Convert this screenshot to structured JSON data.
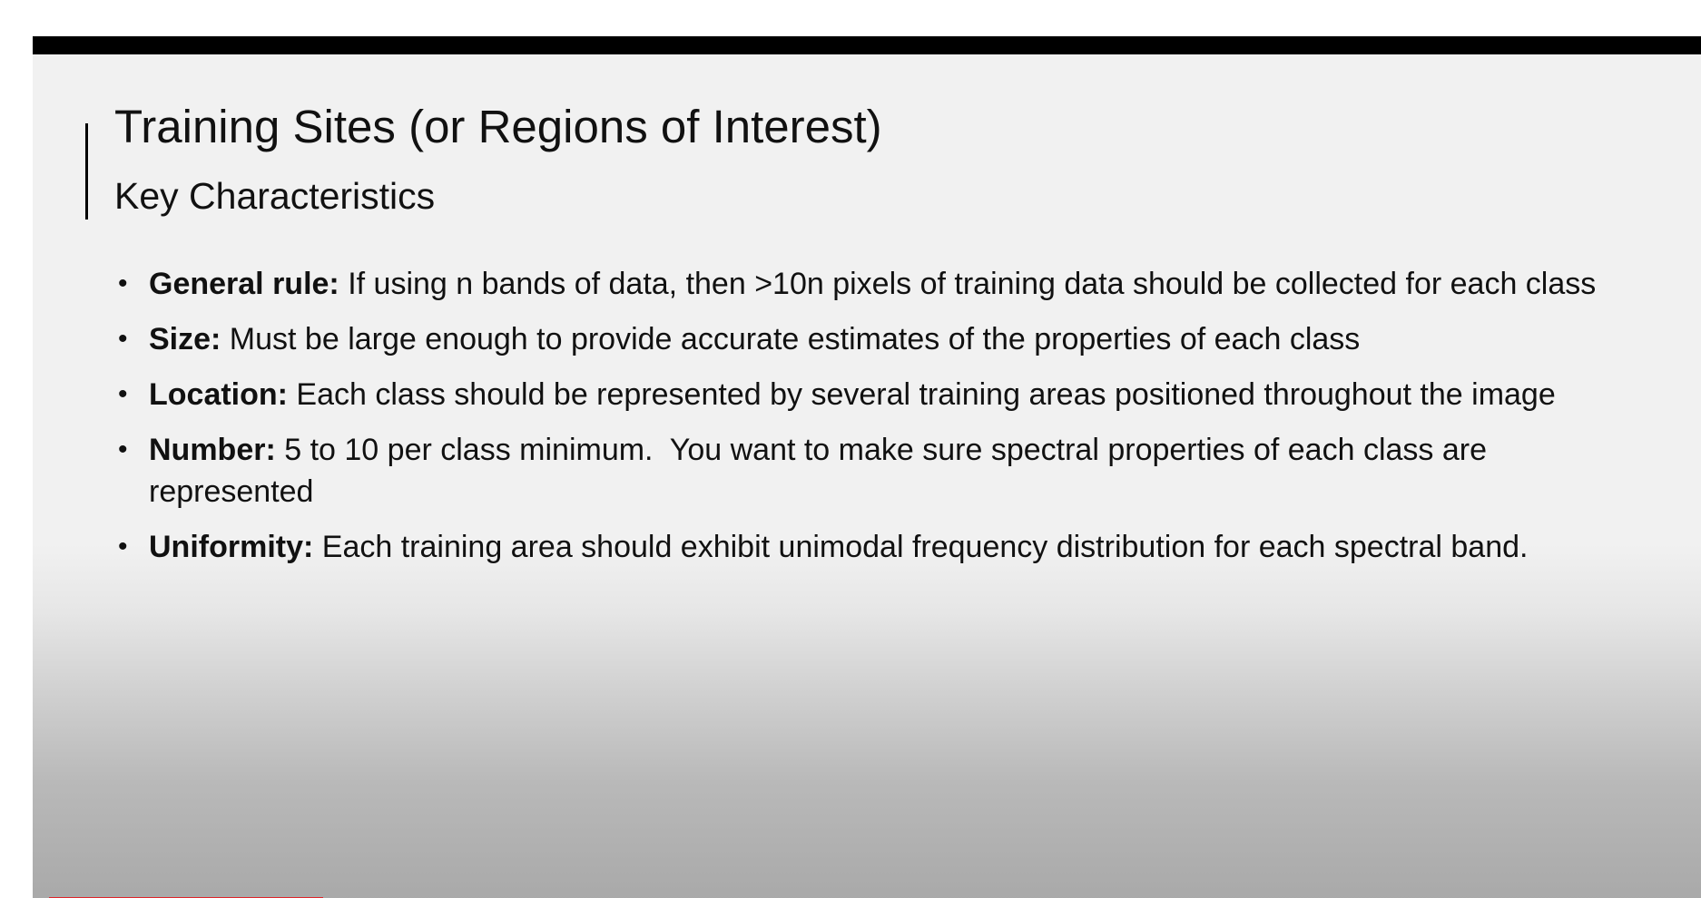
{
  "slide": {
    "title": "Training Sites (or Regions of Interest)",
    "subtitle": "Key Characteristics",
    "bullets": [
      {
        "term": "General rule:",
        "text": " If using n bands of data, then >10n pixels of training data should be collected for each class"
      },
      {
        "term": "Size:",
        "text": " Must be large enough to provide accurate estimates of the properties of each class"
      },
      {
        "term": "Location:",
        "text": " Each class should be represented by several training areas positioned throughout the image"
      },
      {
        "term": "Number:",
        "text": " 5 to 10 per class minimum.  You want to make sure spectral properties of each class are represented"
      },
      {
        "term": "Uniformity:",
        "text": " Each training area should exhibit unimodal frequency distribution for each spectral band."
      }
    ],
    "bullet_glyph": "•"
  },
  "colors": {
    "slide_background": "#f1f1f1",
    "top_bar": "#000000",
    "progress_accent": "#e0262b"
  }
}
